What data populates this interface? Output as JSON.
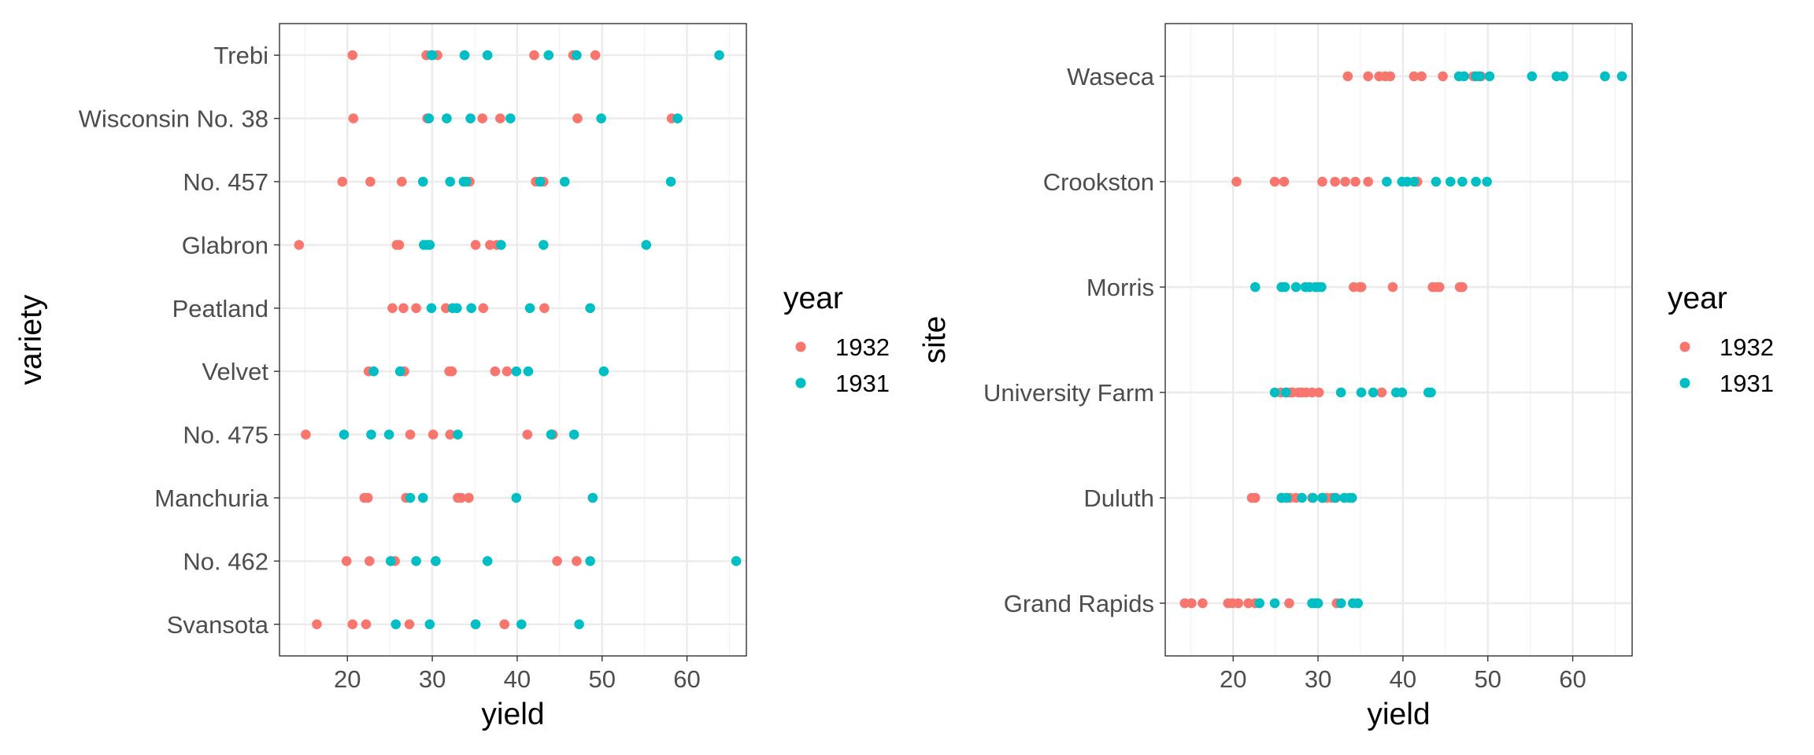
{
  "colors": {
    "1932": "#F8766D",
    "1931": "#00BFC4"
  },
  "chart_data": [
    {
      "type": "scatter",
      "xlabel": "yield",
      "ylabel": "variety",
      "xlim": [
        12.0,
        67.0
      ],
      "xticks": [
        20,
        30,
        40,
        50,
        60
      ],
      "categories": [
        "Trebi",
        "Wisconsin No. 38",
        "No. 457",
        "Glabron",
        "Peatland",
        "Velvet",
        "No. 475",
        "Manchuria",
        "No. 462",
        "Svansota"
      ],
      "grid": true,
      "legend": {
        "title": "year",
        "position": "right",
        "entries": [
          "1932",
          "1931"
        ]
      },
      "series": [
        {
          "name": "1932",
          "color_key": "1932",
          "points": {
            "Trebi": [
              20.6,
              29.3,
              30.6,
              42.0,
              46.6,
              49.2
            ],
            "Wisconsin No. 38": [
              20.7,
              29.4,
              35.9,
              38.0,
              47.1,
              58.2
            ],
            "No. 457": [
              19.4,
              22.7,
              26.4,
              34.4,
              42.2,
              43.1
            ],
            "Glabron": [
              14.3,
              25.8,
              26.1,
              35.1,
              36.8,
              37.6
            ],
            "Peatland": [
              25.3,
              26.6,
              28.1,
              31.6,
              36.0,
              43.2
            ],
            "Velvet": [
              22.5,
              26.7,
              32.0,
              32.3,
              37.4,
              38.8
            ],
            "No. 475": [
              15.1,
              27.4,
              30.1,
              32.1,
              41.2,
              44.2
            ],
            "Manchuria": [
              22.0,
              22.4,
              26.9,
              33.0,
              33.4,
              34.3
            ],
            "No. 462": [
              19.9,
              22.6,
              25.6,
              30.4,
              44.7,
              47.0
            ],
            "Svansota": [
              16.4,
              20.6,
              22.2,
              27.3,
              35.1,
              38.5
            ]
          }
        },
        {
          "name": "1931",
          "color_key": "1931",
          "points": {
            "Trebi": [
              29.9,
              30.0,
              33.8,
              36.5,
              43.7,
              47.0,
              63.8
            ],
            "Wisconsin No. 38": [
              29.6,
              31.7,
              34.5,
              39.2,
              49.9,
              58.9
            ],
            "No. 457": [
              28.9,
              32.1,
              33.7,
              34.0,
              42.7,
              45.6,
              58.1
            ],
            "Glabron": [
              29.0,
              29.4,
              29.7,
              38.1,
              43.1,
              55.2
            ],
            "Peatland": [
              29.9,
              32.4,
              32.9,
              34.6,
              41.5,
              48.6
            ],
            "Velvet": [
              23.1,
              26.2,
              39.9,
              41.3,
              50.2
            ],
            "No. 475": [
              19.6,
              22.8,
              24.9,
              33.0,
              44.0,
              46.7
            ],
            "Manchuria": [
              27.4,
              28.9,
              39.9,
              48.9
            ],
            "No. 462": [
              25.1,
              28.1,
              30.4,
              36.5,
              48.6,
              65.8
            ],
            "Svansota": [
              25.7,
              29.7,
              35.1,
              40.5,
              47.3
            ]
          }
        }
      ]
    },
    {
      "type": "scatter",
      "xlabel": "yield",
      "ylabel": "site",
      "xlim": [
        12.0,
        67.0
      ],
      "xticks": [
        20,
        30,
        40,
        50,
        60
      ],
      "categories": [
        "Waseca",
        "Crookston",
        "Morris",
        "University Farm",
        "Duluth",
        "Grand Rapids"
      ],
      "grid": true,
      "legend": {
        "title": "year",
        "position": "right",
        "entries": [
          "1932",
          "1931"
        ]
      },
      "series": [
        {
          "name": "1932",
          "color_key": "1932",
          "points": {
            "Waseca": [
              33.5,
              35.9,
              37.2,
              37.9,
              38.5,
              41.3,
              42.2,
              44.7,
              48.3,
              49.2
            ],
            "Crookston": [
              20.4,
              24.9,
              26.0,
              30.5,
              32.0,
              33.2,
              34.4,
              35.9,
              41.5,
              41.7
            ],
            "Morris": [
              34.2,
              34.9,
              35.1,
              38.8,
              43.5,
              44.0,
              44.3,
              46.7,
              47.0
            ],
            "University Farm": [
              25.6,
              26.4,
              26.8,
              27.0,
              27.7,
              28.1,
              28.6,
              29.3,
              30.1,
              37.5
            ],
            "Duluth": [
              22.2,
              22.6,
              25.7,
              26.7,
              27.4,
              29.3,
              30.6,
              31.0,
              31.6,
              32.1
            ],
            "Grand Rapids": [
              14.3,
              15.1,
              16.4,
              19.4,
              19.9,
              20.6,
              21.8,
              22.6,
              26.6,
              32.2
            ]
          }
        },
        {
          "name": "1931",
          "color_key": "1931",
          "points": {
            "Waseca": [
              46.6,
              47.2,
              48.6,
              49.0,
              50.2,
              55.2,
              58.1,
              58.9,
              63.8,
              65.8
            ],
            "Crookston": [
              38.1,
              39.9,
              40.5,
              41.3,
              43.9,
              45.6,
              47.0,
              48.6,
              49.9
            ],
            "Morris": [
              22.6,
              25.7,
              26.1,
              27.4,
              28.5,
              29.0,
              29.7,
              30.0,
              30.4
            ],
            "University Farm": [
              24.9,
              26.2,
              32.7,
              35.1,
              36.5,
              39.2,
              39.9,
              43.0,
              43.3
            ],
            "Duluth": [
              25.7,
              26.3,
              28.1,
              29.4,
              30.5,
              32.0,
              33.1,
              33.7,
              34.0
            ],
            "Grand Rapids": [
              23.1,
              24.9,
              29.3,
              29.7,
              30.0,
              32.7,
              34.1,
              34.7
            ]
          }
        }
      ]
    }
  ]
}
